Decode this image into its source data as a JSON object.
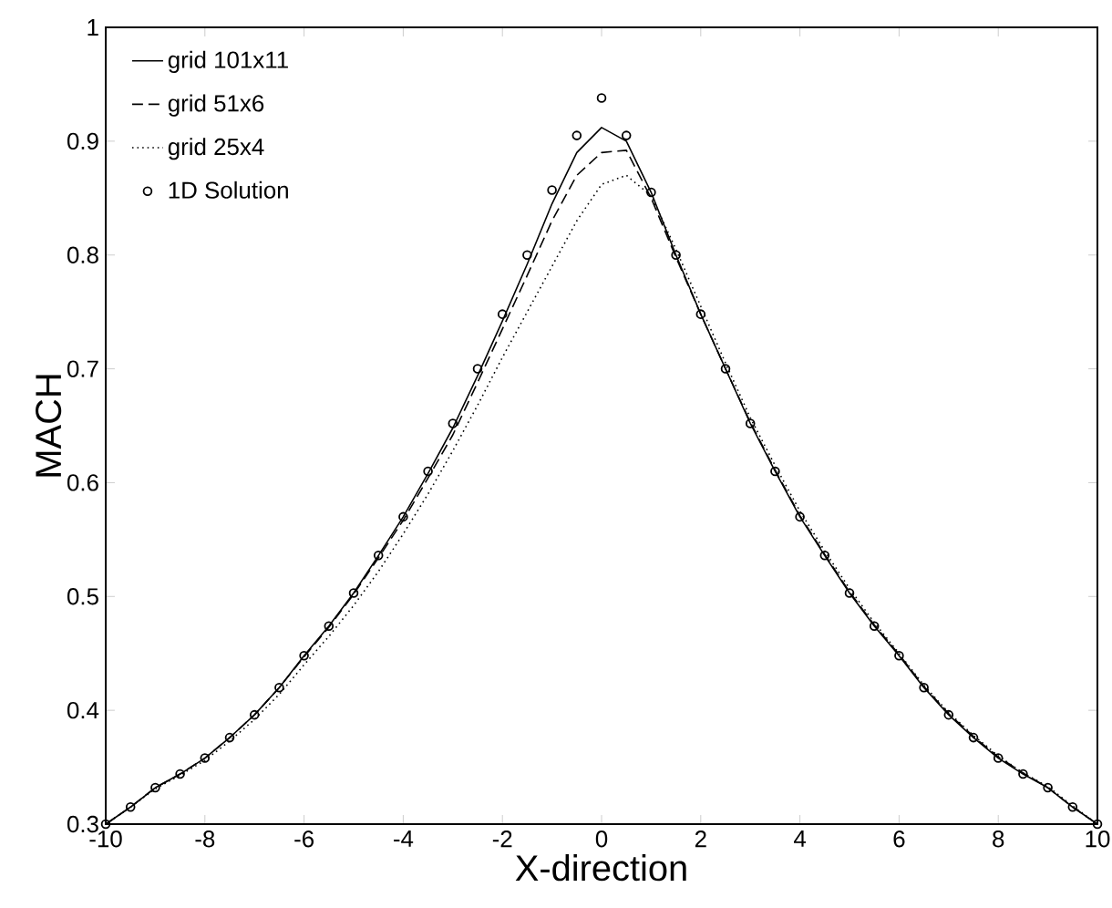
{
  "chart_data": {
    "type": "line",
    "xlabel": "X-direction",
    "ylabel": "MACH",
    "x": [
      -10,
      -9.5,
      -9,
      -8.5,
      -8,
      -7.5,
      -7,
      -6.5,
      -6,
      -5.5,
      -5,
      -4.5,
      -4,
      -3.5,
      -3,
      -2.5,
      -2,
      -1.5,
      -1,
      -0.5,
      0,
      0.5,
      1,
      1.5,
      2,
      2.5,
      3,
      3.5,
      4,
      4.5,
      5,
      5.5,
      6,
      6.5,
      7,
      7.5,
      8,
      8.5,
      9,
      9.5,
      10
    ],
    "series": [
      {
        "name": "grid 101x11",
        "line_style": "solid",
        "marker": "none",
        "color": "#000000",
        "values": [
          0.3,
          0.315,
          0.332,
          0.344,
          0.358,
          0.376,
          0.396,
          0.42,
          0.448,
          0.474,
          0.503,
          0.536,
          0.57,
          0.608,
          0.648,
          0.694,
          0.742,
          0.792,
          0.845,
          0.89,
          0.912,
          0.9,
          0.855,
          0.8,
          0.748,
          0.7,
          0.652,
          0.61,
          0.57,
          0.536,
          0.503,
          0.474,
          0.448,
          0.42,
          0.396,
          0.376,
          0.358,
          0.344,
          0.332,
          0.315,
          0.3
        ]
      },
      {
        "name": "grid 51x6",
        "line_style": "dashed",
        "marker": "none",
        "color": "#000000",
        "values": [
          0.3,
          0.315,
          0.332,
          0.344,
          0.358,
          0.376,
          0.396,
          0.42,
          0.447,
          0.473,
          0.502,
          0.534,
          0.567,
          0.604,
          0.642,
          0.688,
          0.735,
          0.782,
          0.83,
          0.87,
          0.89,
          0.892,
          0.85,
          0.798,
          0.748,
          0.7,
          0.653,
          0.611,
          0.571,
          0.537,
          0.504,
          0.475,
          0.449,
          0.421,
          0.397,
          0.377,
          0.359,
          0.345,
          0.332,
          0.315,
          0.3
        ]
      },
      {
        "name": "grid 25x4",
        "line_style": "dotted",
        "marker": "none",
        "color": "#000000",
        "values": [
          0.3,
          0.315,
          0.331,
          0.343,
          0.356,
          0.373,
          0.392,
          0.414,
          0.44,
          0.465,
          0.492,
          0.522,
          0.555,
          0.59,
          0.628,
          0.668,
          0.71,
          0.75,
          0.79,
          0.83,
          0.862,
          0.87,
          0.852,
          0.805,
          0.755,
          0.705,
          0.657,
          0.615,
          0.575,
          0.54,
          0.507,
          0.477,
          0.45,
          0.422,
          0.398,
          0.378,
          0.36,
          0.345,
          0.333,
          0.316,
          0.3
        ]
      },
      {
        "name": "1D Solution",
        "type": "scatter",
        "marker": "circle",
        "color": "#000000",
        "values": [
          0.3,
          0.315,
          0.332,
          0.344,
          0.358,
          0.376,
          0.396,
          0.42,
          0.448,
          0.474,
          0.503,
          0.536,
          0.57,
          0.61,
          0.652,
          0.7,
          0.748,
          0.8,
          0.857,
          0.905,
          0.938,
          0.905,
          0.855,
          0.8,
          0.748,
          0.7,
          0.652,
          0.61,
          0.57,
          0.536,
          0.503,
          0.474,
          0.448,
          0.42,
          0.396,
          0.376,
          0.358,
          0.344,
          0.332,
          0.315,
          0.3
        ]
      }
    ],
    "xlim": [
      -10,
      10
    ],
    "ylim": [
      0.3,
      1
    ],
    "xticks": [
      -10,
      -8,
      -6,
      -4,
      -2,
      0,
      2,
      4,
      6,
      8,
      10
    ],
    "yticks": [
      0.3,
      0.4,
      0.5,
      0.6,
      0.7,
      0.8,
      0.9,
      1
    ],
    "grid": false,
    "legend": "top left"
  }
}
